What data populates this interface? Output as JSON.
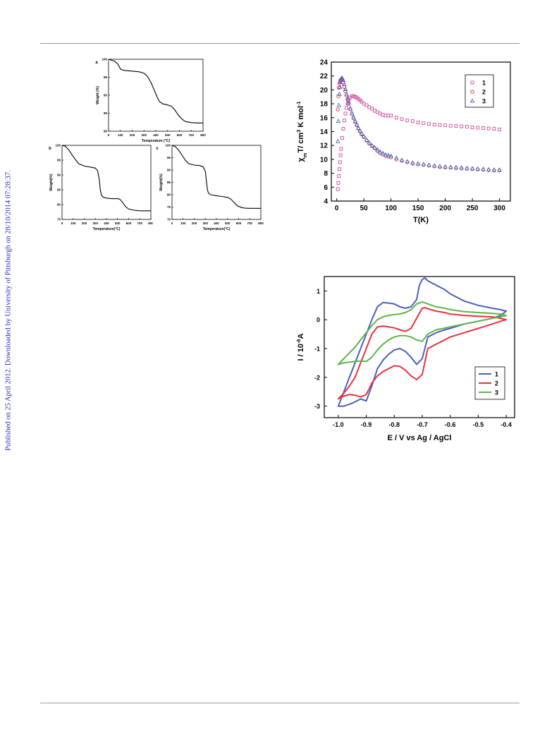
{
  "sidebar_text": "Published on 25 April 2012. Downloaded by University of Pittsburgh on 28/10/2014 07:28:37.",
  "chart_data": [
    {
      "id": "tga_a",
      "type": "line",
      "panel_label": "a",
      "xlabel": "Temperature (°C)",
      "ylabel": "Weight (%)",
      "xlim": [
        0,
        800
      ],
      "ylim": [
        80,
        100
      ],
      "xticks": [
        0,
        100,
        200,
        300,
        400,
        500,
        600,
        700,
        800
      ],
      "yticks": [
        80,
        85,
        90,
        95,
        100
      ],
      "series": [
        {
          "color": "#000000",
          "x": [
            0,
            50,
            80,
            100,
            130,
            200,
            260,
            300,
            330,
            360,
            390,
            410,
            430,
            460,
            500,
            530,
            560,
            590,
            620,
            650,
            700,
            750,
            800
          ],
          "y": [
            100,
            99.5,
            98.6,
            97.3,
            96.9,
            96.7,
            96.5,
            96.1,
            95.2,
            93.5,
            91.2,
            89.6,
            88.3,
            87.6,
            87.3,
            87.0,
            86.0,
            84.5,
            83.4,
            82.7,
            82.4,
            82.3,
            82.3
          ]
        }
      ]
    },
    {
      "id": "tga_b",
      "type": "line",
      "panel_label": "b",
      "xlabel": "Temperature(°C)",
      "ylabel": "Weight(%)",
      "xlim": [
        0,
        800
      ],
      "ylim": [
        75,
        100
      ],
      "xticks": [
        0,
        100,
        200,
        300,
        400,
        500,
        600,
        700,
        800
      ],
      "yticks": [
        75,
        80,
        85,
        90,
        95,
        100
      ],
      "series": [
        {
          "color": "#000000",
          "x": [
            0,
            30,
            60,
            90,
            120,
            150,
            200,
            250,
            300,
            320,
            335,
            345,
            355,
            370,
            400,
            450,
            500,
            520,
            540,
            570,
            600,
            650,
            700,
            750,
            800
          ],
          "y": [
            100,
            99.7,
            98.5,
            96.8,
            95.2,
            93.8,
            93.0,
            92.7,
            92.3,
            91.5,
            88.5,
            85.0,
            83.2,
            82.5,
            82.2,
            82.0,
            82.0,
            81.8,
            81.0,
            79.4,
            78.5,
            78.1,
            77.9,
            77.9,
            77.9
          ]
        }
      ]
    },
    {
      "id": "tga_c",
      "type": "line",
      "panel_label": "c",
      "xlabel": "Temperature(°C)",
      "ylabel": "Weight(%)",
      "xlim": [
        0,
        800
      ],
      "ylim": [
        70,
        100
      ],
      "xticks": [
        0,
        100,
        200,
        300,
        400,
        500,
        600,
        700,
        800
      ],
      "yticks": [
        70,
        75,
        80,
        85,
        90,
        95,
        100
      ],
      "series": [
        {
          "color": "#000000",
          "x": [
            0,
            30,
            60,
            90,
            120,
            150,
            200,
            250,
            280,
            300,
            310,
            320,
            330,
            350,
            400,
            450,
            500,
            530,
            560,
            590,
            620,
            650,
            700,
            750,
            800
          ],
          "y": [
            100,
            99.5,
            98.0,
            96.0,
            94.0,
            92.6,
            92.0,
            91.8,
            91.3,
            89.5,
            85.5,
            81.8,
            80.5,
            80.0,
            79.6,
            79.3,
            78.9,
            78.2,
            76.8,
            75.5,
            74.9,
            74.6,
            74.5,
            74.5,
            74.5
          ]
        }
      ]
    },
    {
      "id": "magnetic",
      "type": "scatter",
      "xlabel": "T(K)",
      "ylabel": "χmT/ cm3 K mol-1",
      "xlim": [
        -10,
        320
      ],
      "ylim": [
        4,
        24
      ],
      "xticks": [
        0,
        50,
        100,
        150,
        200,
        250,
        300
      ],
      "yticks": [
        4,
        6,
        8,
        10,
        12,
        14,
        16,
        18,
        20,
        22,
        24
      ],
      "legend": "top-right",
      "series": [
        {
          "name": "1",
          "marker": "square",
          "color": "#cc4f9a",
          "x": [
            2,
            3,
            4,
            5,
            6,
            7,
            8,
            10,
            12,
            14,
            16,
            18,
            20,
            22,
            25,
            28,
            31,
            34,
            37,
            40,
            43,
            46,
            50,
            55,
            60,
            65,
            70,
            75,
            80,
            85,
            90,
            95,
            100,
            110,
            120,
            130,
            140,
            150,
            160,
            170,
            180,
            190,
            200,
            210,
            220,
            230,
            240,
            250,
            260,
            270,
            280,
            290,
            300
          ],
          "y": [
            5.7,
            6.6,
            7.6,
            8.6,
            9.6,
            10.6,
            11.5,
            13.1,
            14.4,
            15.6,
            16.6,
            17.4,
            18.0,
            18.5,
            18.9,
            19.1,
            19.1,
            19.0,
            18.9,
            18.7,
            18.5,
            18.3,
            18.0,
            17.8,
            17.5,
            17.3,
            17.0,
            16.8,
            16.6,
            16.4,
            16.3,
            16.3,
            16.3,
            16.0,
            15.8,
            15.6,
            15.5,
            15.3,
            15.2,
            15.1,
            15.0,
            14.95,
            14.9,
            14.85,
            14.8,
            14.75,
            14.7,
            14.6,
            14.55,
            14.5,
            14.45,
            14.4,
            14.3
          ]
        },
        {
          "name": "2",
          "marker": "circle",
          "color": "#e0263a",
          "x": [
            2,
            3,
            4,
            5,
            6,
            7,
            8,
            9,
            10,
            12,
            14,
            16,
            18,
            20,
            22,
            25,
            28,
            31,
            34,
            37,
            40,
            43,
            46,
            50,
            55,
            60,
            65,
            70,
            75,
            80,
            85,
            90,
            95,
            100,
            110,
            120,
            130,
            140,
            150,
            160,
            170,
            180,
            190,
            200,
            210,
            220,
            230,
            240,
            250,
            260,
            270,
            280,
            290,
            300
          ],
          "y": [
            17.2,
            19.1,
            20.3,
            20.9,
            21.2,
            21.4,
            21.5,
            21.5,
            21.4,
            21.0,
            20.4,
            19.8,
            19.2,
            18.6,
            18.0,
            17.2,
            16.5,
            15.9,
            15.4,
            14.9,
            14.4,
            14.0,
            13.6,
            13.2,
            12.7,
            12.3,
            11.9,
            11.6,
            11.2,
            10.9,
            10.7,
            10.5,
            10.4,
            10.3,
            10.0,
            9.8,
            9.6,
            9.4,
            9.3,
            9.2,
            9.1,
            9.0,
            8.9,
            8.85,
            8.8,
            8.75,
            8.7,
            8.65,
            8.6,
            8.55,
            8.5,
            8.45,
            8.4,
            8.4
          ]
        },
        {
          "name": "3",
          "marker": "triangle",
          "color": "#3f6fc4",
          "x": [
            2,
            3,
            4,
            5,
            6,
            7,
            8,
            9,
            10,
            12,
            14,
            16,
            18,
            20,
            22,
            25,
            28,
            31,
            34,
            37,
            40,
            43,
            46,
            50,
            55,
            60,
            65,
            70,
            75,
            80,
            85,
            90,
            95,
            100,
            110,
            120,
            130,
            140,
            150,
            160,
            170,
            180,
            190,
            200,
            210,
            220,
            230,
            240,
            250,
            260,
            270,
            280,
            290,
            300
          ],
          "y": [
            12.6,
            15.5,
            17.8,
            19.4,
            20.4,
            21.1,
            21.5,
            21.7,
            21.7,
            21.4,
            20.8,
            20.1,
            19.4,
            18.8,
            18.2,
            17.4,
            16.7,
            16.1,
            15.5,
            15.0,
            14.5,
            14.1,
            13.7,
            13.3,
            12.8,
            12.4,
            12.0,
            11.7,
            11.4,
            11.1,
            10.9,
            10.7,
            10.6,
            10.5,
            10.2,
            9.9,
            9.7,
            9.5,
            9.4,
            9.3,
            9.2,
            9.1,
            9.0,
            8.95,
            8.9,
            8.85,
            8.8,
            8.75,
            8.7,
            8.65,
            8.6,
            8.55,
            8.5,
            8.5
          ]
        }
      ]
    },
    {
      "id": "cv",
      "type": "line",
      "xlabel": "E / V vs Ag / AgCl",
      "ylabel": "I / 10-6A",
      "xlim": [
        -1.05,
        -0.37
      ],
      "ylim": [
        -3.4,
        1.5
      ],
      "xticks": [
        -1.0,
        -0.9,
        -0.8,
        -0.7,
        -0.6,
        -0.5,
        -0.4
      ],
      "xtick_labels": [
        "-1.0",
        "-0.9",
        "-0.8",
        "-0.7",
        "-0.6",
        "-0.5",
        "-0.4"
      ],
      "yticks": [
        -3,
        -2,
        -1,
        0,
        1
      ],
      "legend": "bottom-right",
      "series": [
        {
          "name": "1",
          "color": "#4a5fc0",
          "x": [
            -1.0,
            -0.98,
            -0.95,
            -0.92,
            -0.9,
            -0.88,
            -0.86,
            -0.84,
            -0.82,
            -0.8,
            -0.78,
            -0.76,
            -0.74,
            -0.72,
            -0.7,
            -0.68,
            -0.65,
            -0.62,
            -0.6,
            -0.55,
            -0.5,
            -0.45,
            -0.42,
            -0.4,
            -0.42,
            -0.45,
            -0.5,
            -0.55,
            -0.6,
            -0.62,
            -0.65,
            -0.68,
            -0.69,
            -0.7,
            -0.71,
            -0.72,
            -0.74,
            -0.76,
            -0.78,
            -0.8,
            -0.82,
            -0.84,
            -0.86,
            -0.88,
            -0.9,
            -0.92,
            -0.94,
            -0.96,
            -0.98,
            -1.0
          ],
          "y": [
            -3.0,
            -3.0,
            -2.9,
            -2.75,
            -2.82,
            -2.3,
            -1.7,
            -1.4,
            -1.2,
            -1.05,
            -1.0,
            -1.1,
            -1.3,
            -1.55,
            -1.35,
            -0.6,
            -0.45,
            -0.35,
            -0.3,
            -0.15,
            -0.05,
            0.05,
            0.15,
            0.3,
            0.35,
            0.4,
            0.5,
            0.65,
            0.9,
            1.05,
            1.2,
            1.35,
            1.45,
            1.4,
            1.2,
            0.7,
            0.45,
            0.4,
            0.45,
            0.55,
            0.58,
            0.6,
            0.45,
            0.0,
            -0.5,
            -1.0,
            -1.5,
            -2.0,
            -2.5,
            -3.0
          ]
        },
        {
          "name": "2",
          "color": "#e8323a",
          "x": [
            -1.0,
            -0.98,
            -0.96,
            -0.94,
            -0.92,
            -0.9,
            -0.88,
            -0.86,
            -0.84,
            -0.82,
            -0.8,
            -0.78,
            -0.76,
            -0.74,
            -0.72,
            -0.7,
            -0.68,
            -0.65,
            -0.62,
            -0.6,
            -0.55,
            -0.5,
            -0.45,
            -0.42,
            -0.4,
            -0.42,
            -0.45,
            -0.5,
            -0.55,
            -0.6,
            -0.62,
            -0.65,
            -0.68,
            -0.69,
            -0.7,
            -0.72,
            -0.74,
            -0.76,
            -0.78,
            -0.8,
            -0.82,
            -0.84,
            -0.86,
            -0.88,
            -0.9,
            -0.92,
            -0.94,
            -0.96,
            -0.98,
            -1.0
          ],
          "y": [
            -2.75,
            -2.65,
            -2.6,
            -2.62,
            -2.68,
            -2.6,
            -2.2,
            -1.95,
            -1.8,
            -1.7,
            -1.6,
            -1.62,
            -1.75,
            -1.95,
            -2.08,
            -1.9,
            -1.0,
            -0.85,
            -0.7,
            -0.6,
            -0.45,
            -0.3,
            -0.15,
            -0.05,
            0.0,
            0.05,
            0.1,
            0.12,
            0.15,
            0.2,
            0.25,
            0.3,
            0.38,
            0.42,
            0.4,
            0.05,
            -0.3,
            -0.4,
            -0.35,
            -0.28,
            -0.25,
            -0.22,
            -0.25,
            -0.5,
            -1.0,
            -1.5,
            -2.0,
            -2.3,
            -2.55,
            -2.75
          ]
        },
        {
          "name": "3",
          "color": "#5bb648",
          "x": [
            -1.0,
            -0.98,
            -0.96,
            -0.94,
            -0.92,
            -0.9,
            -0.88,
            -0.86,
            -0.84,
            -0.82,
            -0.8,
            -0.78,
            -0.76,
            -0.74,
            -0.72,
            -0.7,
            -0.68,
            -0.65,
            -0.6,
            -0.55,
            -0.5,
            -0.45,
            -0.42,
            -0.4,
            -0.42,
            -0.45,
            -0.5,
            -0.55,
            -0.6,
            -0.62,
            -0.65,
            -0.68,
            -0.7,
            -0.72,
            -0.74,
            -0.76,
            -0.78,
            -0.8,
            -0.82,
            -0.84,
            -0.86,
            -0.88,
            -0.9,
            -0.92,
            -0.94,
            -0.96,
            -0.98,
            -1.0
          ],
          "y": [
            -1.55,
            -1.5,
            -1.47,
            -1.45,
            -1.43,
            -1.45,
            -1.3,
            -1.05,
            -0.85,
            -0.7,
            -0.6,
            -0.55,
            -0.55,
            -0.6,
            -0.7,
            -0.75,
            -0.5,
            -0.35,
            -0.25,
            -0.15,
            -0.05,
            0.05,
            0.1,
            0.15,
            0.2,
            0.22,
            0.25,
            0.28,
            0.35,
            0.4,
            0.45,
            0.55,
            0.62,
            0.55,
            0.35,
            0.25,
            0.2,
            0.18,
            0.15,
            0.1,
            0.0,
            -0.2,
            -0.45,
            -0.7,
            -0.95,
            -1.15,
            -1.35,
            -1.55
          ]
        }
      ]
    }
  ]
}
